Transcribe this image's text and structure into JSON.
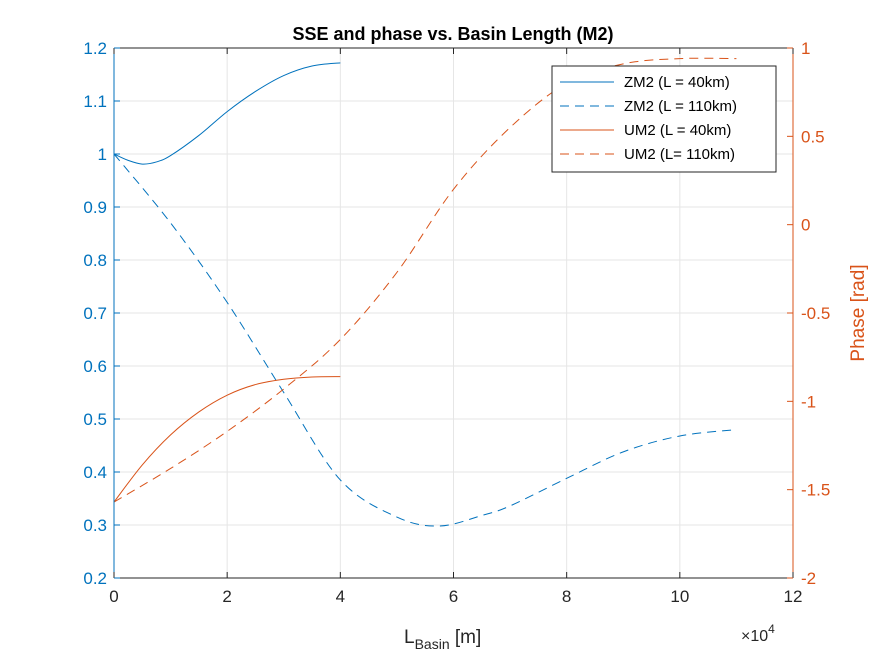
{
  "colors": {
    "left_axis": "#0072BD",
    "right_axis": "#D95319",
    "grid": "#e6e6e6",
    "axis": "#262626"
  },
  "chart_data": {
    "type": "line",
    "title": "SSE and phase vs. Basin Length (M2)",
    "xlabel_main": "L",
    "xlabel_sub": "Basin",
    "xlabel_unit": " [m]",
    "ylabel_right": "Phase [rad]",
    "ylabel_left": "",
    "xlim": [
      0,
      120000
    ],
    "ylim_left": [
      0.2,
      1.2
    ],
    "ylim_right": [
      -2,
      1
    ],
    "x_ticks": [
      0,
      20000,
      40000,
      60000,
      80000,
      100000,
      120000
    ],
    "x_tick_labels": [
      "0",
      "2",
      "4",
      "6",
      "8",
      "10",
      "12"
    ],
    "x_exponent_base": "×10",
    "x_exponent": "4",
    "y_left_ticks": [
      0.2,
      0.3,
      0.4,
      0.5,
      0.6,
      0.7,
      0.8,
      0.9,
      1.0,
      1.1,
      1.2
    ],
    "y_left_tick_labels": [
      "0.2",
      "0.3",
      "0.4",
      "0.5",
      "0.6",
      "0.7",
      "0.8",
      "0.9",
      "1",
      "1.1",
      "1.2"
    ],
    "y_right_ticks": [
      -2,
      -1.5,
      -1,
      -0.5,
      0,
      0.5,
      1
    ],
    "y_right_tick_labels": [
      "-2",
      "-1.5",
      "-1",
      "-0.5",
      "0",
      "0.5",
      "1"
    ],
    "grid": true,
    "legend_position": "top-right",
    "series": [
      {
        "name": "ZM2 (L = 40km)",
        "axis": "left",
        "style": "solid",
        "x": [
          0,
          2500,
          5000,
          7500,
          10000,
          15000,
          20000,
          25000,
          30000,
          35000,
          40000
        ],
        "y": [
          1.0,
          0.988,
          0.981,
          0.985,
          0.997,
          1.035,
          1.08,
          1.118,
          1.148,
          1.166,
          1.172
        ]
      },
      {
        "name": "ZM2 (L = 110km)",
        "axis": "left",
        "style": "dashed",
        "x": [
          0,
          10000,
          20000,
          30000,
          40000,
          50000,
          57500,
          65000,
          70000,
          80000,
          90000,
          100000,
          110000
        ],
        "y": [
          1.0,
          0.87,
          0.72,
          0.55,
          0.385,
          0.315,
          0.298,
          0.318,
          0.336,
          0.388,
          0.438,
          0.468,
          0.48
        ]
      },
      {
        "name": "UM2 (L = 40km)",
        "axis": "right",
        "style": "solid",
        "x": [
          0,
          5000,
          10000,
          15000,
          20000,
          25000,
          30000,
          35000,
          40000
        ],
        "y": [
          -1.57,
          -1.36,
          -1.19,
          -1.06,
          -0.965,
          -0.905,
          -0.875,
          -0.862,
          -0.86
        ]
      },
      {
        "name": "UM2 (L= 110km)",
        "axis": "right",
        "style": "dashed",
        "x": [
          0,
          10000,
          20000,
          30000,
          40000,
          50000,
          60000,
          70000,
          80000,
          90000,
          100000,
          110000
        ],
        "y": [
          -1.57,
          -1.38,
          -1.17,
          -0.93,
          -0.65,
          -0.27,
          0.2,
          0.55,
          0.8,
          0.91,
          0.94,
          0.94
        ]
      }
    ]
  }
}
